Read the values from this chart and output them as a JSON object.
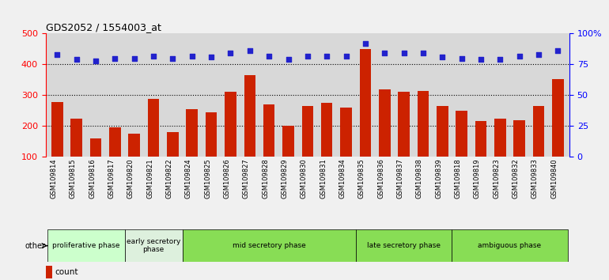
{
  "title": "GDS2052 / 1554003_at",
  "samples": [
    "GSM109814",
    "GSM109815",
    "GSM109816",
    "GSM109817",
    "GSM109820",
    "GSM109821",
    "GSM109822",
    "GSM109824",
    "GSM109825",
    "GSM109826",
    "GSM109827",
    "GSM109828",
    "GSM109829",
    "GSM109830",
    "GSM109831",
    "GSM109834",
    "GSM109835",
    "GSM109836",
    "GSM109837",
    "GSM109838",
    "GSM109839",
    "GSM109818",
    "GSM109819",
    "GSM109823",
    "GSM109832",
    "GSM109833",
    "GSM109840"
  ],
  "counts": [
    278,
    224,
    160,
    196,
    176,
    288,
    180,
    255,
    245,
    310,
    365,
    270,
    200,
    265,
    275,
    260,
    450,
    320,
    310,
    315,
    265,
    250,
    215,
    225,
    220,
    265,
    353
  ],
  "percentiles": [
    83,
    79,
    78,
    80,
    80,
    82,
    80,
    82,
    81,
    84,
    86,
    82,
    79,
    82,
    82,
    82,
    92,
    84,
    84,
    84,
    81,
    80,
    79,
    79,
    82,
    83,
    86
  ],
  "bar_color": "#cc2200",
  "dot_color": "#2222cc",
  "phases": [
    {
      "label": "proliferative phase",
      "start": 0,
      "end": 4,
      "color": "#ccffcc"
    },
    {
      "label": "early secretory\nphase",
      "start": 4,
      "end": 7,
      "color": "#ddf0dd"
    },
    {
      "label": "mid secretory phase",
      "start": 7,
      "end": 16,
      "color": "#88dd55"
    },
    {
      "label": "late secretory phase",
      "start": 16,
      "end": 21,
      "color": "#88dd55"
    },
    {
      "label": "ambiguous phase",
      "start": 21,
      "end": 27,
      "color": "#88dd55"
    }
  ],
  "ylim_left": [
    100,
    500
  ],
  "ylim_right": [
    0,
    100
  ],
  "yticks_left": [
    100,
    200,
    300,
    400,
    500
  ],
  "yticks_right": [
    0,
    25,
    50,
    75,
    100
  ],
  "bg_color": "#f0f0f0",
  "plot_bg": "#d8d8d8",
  "xtick_bg": "#d0d0d0"
}
